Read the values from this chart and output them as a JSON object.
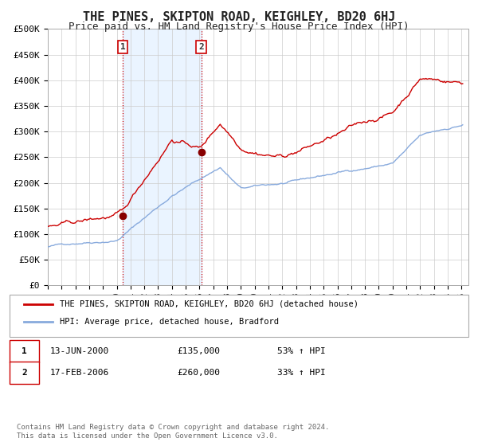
{
  "title": "THE PINES, SKIPTON ROAD, KEIGHLEY, BD20 6HJ",
  "subtitle": "Price paid vs. HM Land Registry's House Price Index (HPI)",
  "title_fontsize": 11,
  "subtitle_fontsize": 9,
  "background_color": "#ffffff",
  "plot_bg_color": "#ffffff",
  "grid_color": "#cccccc",
  "ylabel_ticks": [
    "£0",
    "£50K",
    "£100K",
    "£150K",
    "£200K",
    "£250K",
    "£300K",
    "£350K",
    "£400K",
    "£450K",
    "£500K"
  ],
  "ylabel_values": [
    0,
    50000,
    100000,
    150000,
    200000,
    250000,
    300000,
    350000,
    400000,
    450000,
    500000
  ],
  "ylim": [
    0,
    500000
  ],
  "xtick_years": [
    1995,
    1996,
    1997,
    1998,
    1999,
    2000,
    2001,
    2002,
    2003,
    2004,
    2005,
    2006,
    2007,
    2008,
    2009,
    2010,
    2011,
    2012,
    2013,
    2014,
    2015,
    2016,
    2017,
    2018,
    2019,
    2020,
    2021,
    2022,
    2023,
    2024,
    2025
  ],
  "marker1_x": 2000.44,
  "marker1_y": 135000,
  "marker2_x": 2006.12,
  "marker2_y": 260000,
  "shaded_region": [
    2000.44,
    2006.12
  ],
  "shaded_color": "#ddeeff",
  "shaded_alpha": 0.6,
  "red_line_color": "#cc0000",
  "blue_line_color": "#88aadd",
  "marker_color": "#880000",
  "vline_color": "#cc0000",
  "vline_style": ":",
  "ann_box_color": "#cc0000",
  "legend_red_label": "THE PINES, SKIPTON ROAD, KEIGHLEY, BD20 6HJ (detached house)",
  "legend_blue_label": "HPI: Average price, detached house, Bradford",
  "ann1_label": "1",
  "ann2_label": "2",
  "table_rows": [
    [
      "1",
      "13-JUN-2000",
      "£135,000",
      "53% ↑ HPI"
    ],
    [
      "2",
      "17-FEB-2006",
      "£260,000",
      "33% ↑ HPI"
    ]
  ],
  "footer_text": "Contains HM Land Registry data © Crown copyright and database right 2024.\nThis data is licensed under the Open Government Licence v3.0."
}
